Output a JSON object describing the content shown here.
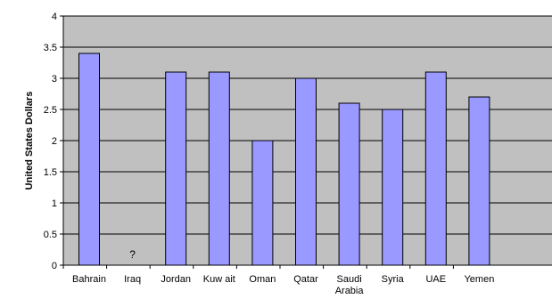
{
  "chart_data": {
    "type": "bar",
    "title": "",
    "xlabel": "",
    "ylabel": "United States Dollars",
    "ylim": [
      0,
      4
    ],
    "yticks": [
      "0",
      "0.5",
      "1",
      "1.5",
      "2",
      "2.5",
      "3",
      "3.5",
      "4"
    ],
    "grid": true,
    "legend": "none",
    "categories": [
      "Bahrain",
      "Iraq",
      "Jordan",
      "Kuw ait",
      "Oman",
      "Qatar",
      "Saudi Arabia",
      "Syria",
      "UAE",
      "Yemen"
    ],
    "values": [
      3.4,
      null,
      3.1,
      3.1,
      2.0,
      3.0,
      2.6,
      2.5,
      3.1,
      2.7
    ],
    "annotations": [
      {
        "category": "Iraq",
        "text": "?"
      }
    ],
    "colors": {
      "bar_fill": "#9999ff",
      "bar_stroke": "#000000",
      "plot_background": "#c0c0c0",
      "gridline": "#000000"
    }
  }
}
